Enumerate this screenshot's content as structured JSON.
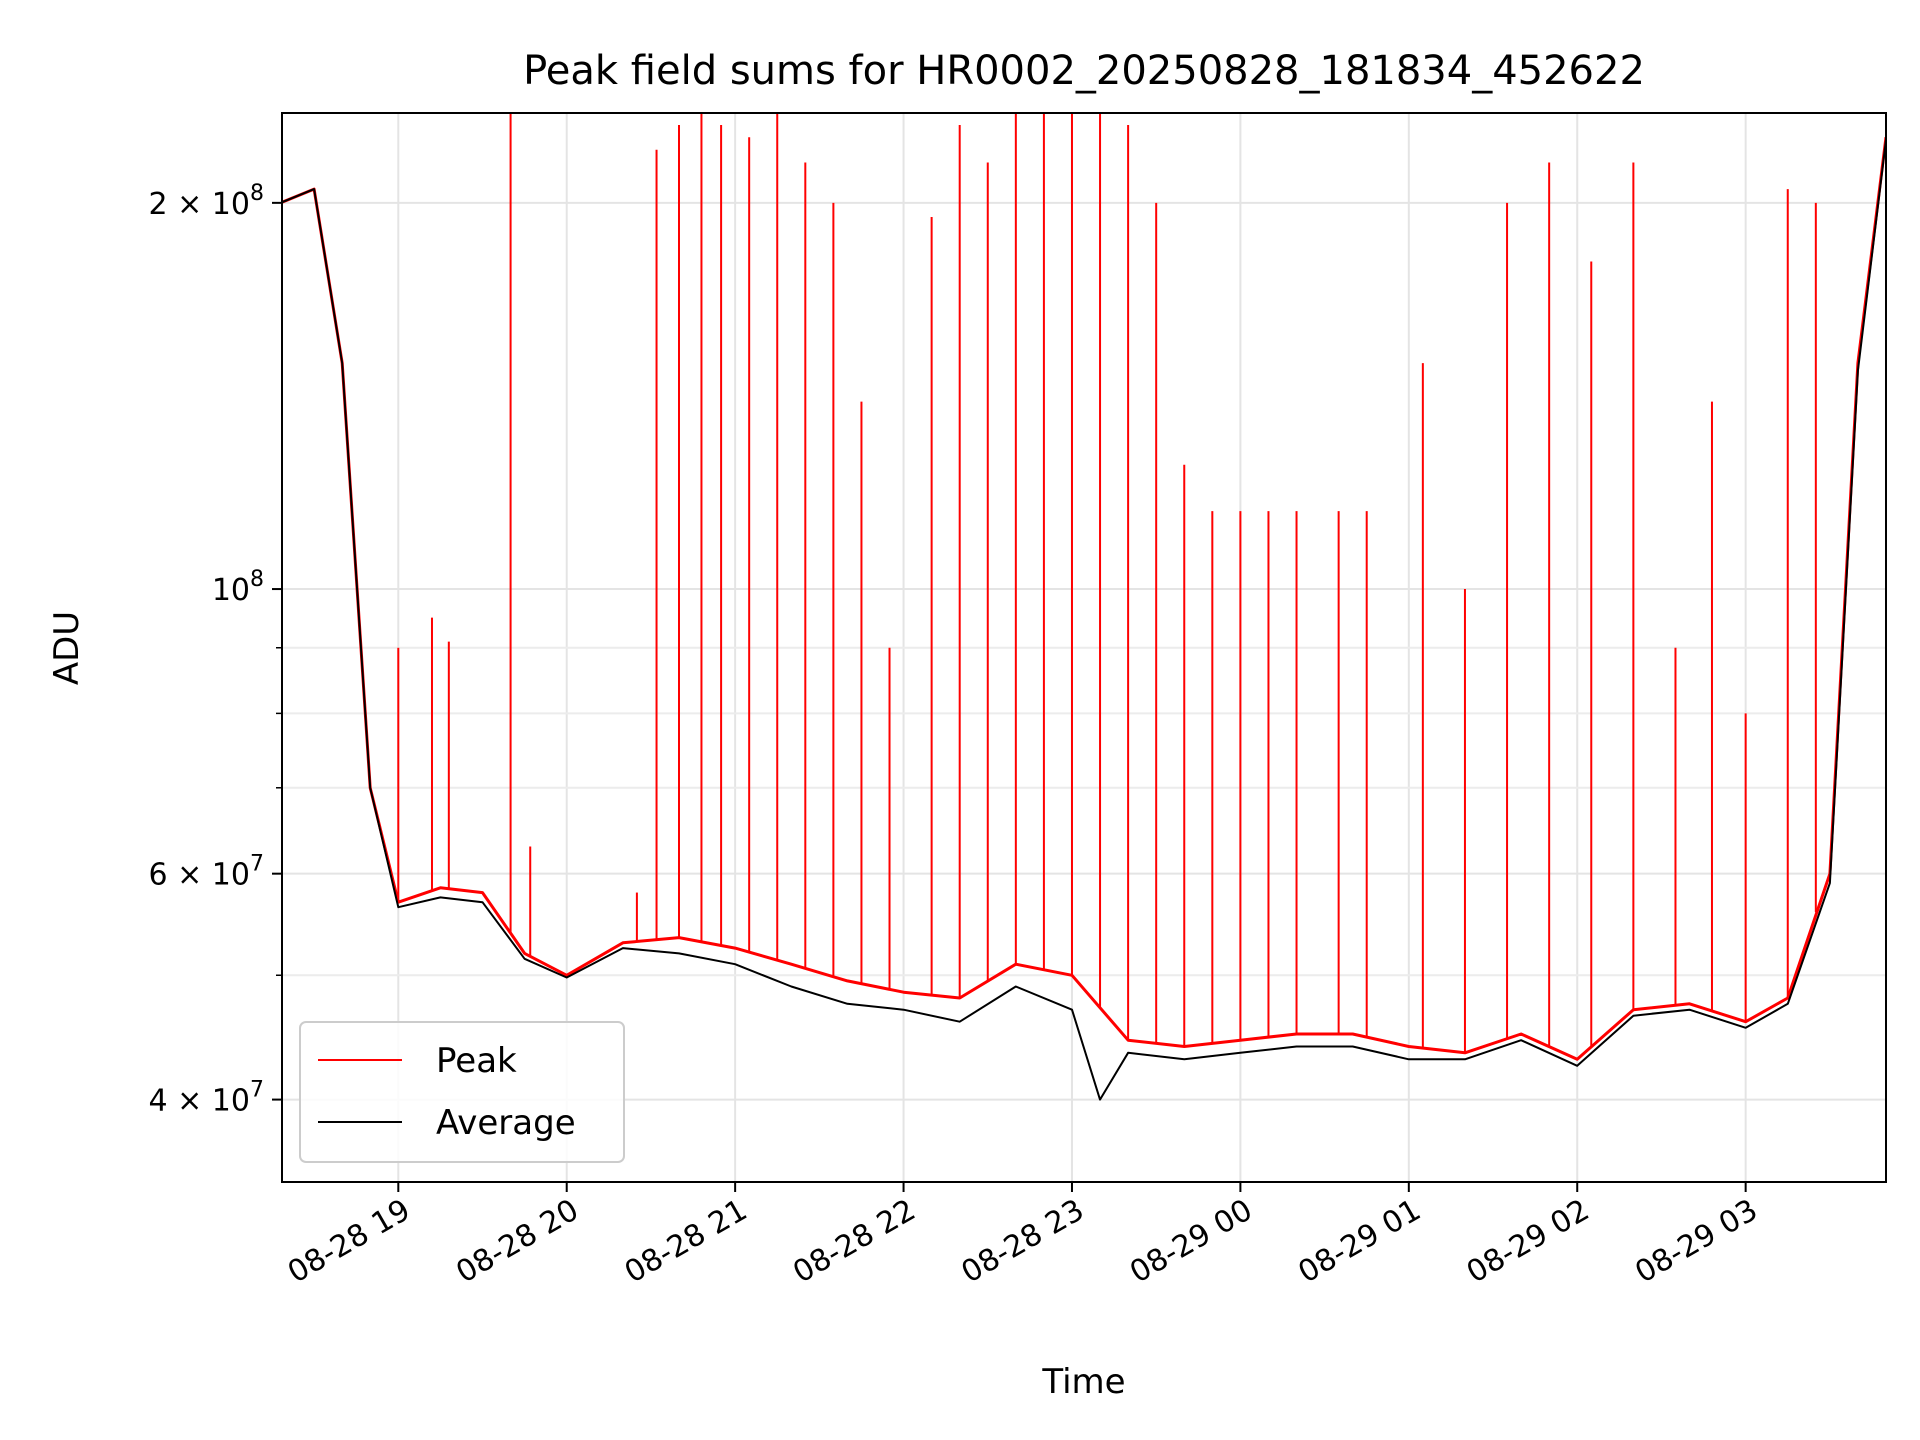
{
  "chart_data": {
    "type": "line",
    "title": "Peak field sums for HR0002_20250828_181834_452622",
    "xlabel": "Time",
    "ylabel": "ADU",
    "yscale": "log",
    "x_range": [
      "2025-08-28 18:18:34",
      "2025-08-29 03:50:00"
    ],
    "ylim": [
      34500000,
      235000000
    ],
    "grid": true,
    "legend_position": "lower-left",
    "x_ticks": [
      {
        "t": "2025-08-28 19:00",
        "label": "08-28 19"
      },
      {
        "t": "2025-08-28 20:00",
        "label": "08-28 20"
      },
      {
        "t": "2025-08-28 21:00",
        "label": "08-28 21"
      },
      {
        "t": "2025-08-28 22:00",
        "label": "08-28 22"
      },
      {
        "t": "2025-08-28 23:00",
        "label": "08-28 23"
      },
      {
        "t": "2025-08-29 00:00",
        "label": "08-29 00"
      },
      {
        "t": "2025-08-29 01:00",
        "label": "08-29 01"
      },
      {
        "t": "2025-08-29 02:00",
        "label": "08-29 02"
      },
      {
        "t": "2025-08-29 03:00",
        "label": "08-29 03"
      }
    ],
    "y_ticks": [
      {
        "value": 40000000,
        "mant": "4",
        "exp": "7"
      },
      {
        "value": 60000000,
        "mant": "6",
        "exp": "7"
      },
      {
        "value": 100000000,
        "mant": "",
        "exp": "8"
      },
      {
        "value": 200000000,
        "mant": "2",
        "exp": "8"
      }
    ],
    "y_minor_ticks": [
      50000000,
      70000000,
      80000000,
      90000000
    ],
    "series": [
      {
        "name": "Peak",
        "color": "#ff0000",
        "x": [
          "2025-08-28 18:18",
          "2025-08-28 18:30",
          "2025-08-28 18:40",
          "2025-08-28 18:50",
          "2025-08-28 19:00",
          "2025-08-28 19:15",
          "2025-08-28 19:30",
          "2025-08-28 19:45",
          "2025-08-28 20:00",
          "2025-08-28 20:20",
          "2025-08-28 20:40",
          "2025-08-28 21:00",
          "2025-08-28 21:20",
          "2025-08-28 21:40",
          "2025-08-28 22:00",
          "2025-08-28 22:20",
          "2025-08-28 22:40",
          "2025-08-28 23:00",
          "2025-08-28 23:20",
          "2025-08-28 23:40",
          "2025-08-29 00:00",
          "2025-08-29 00:20",
          "2025-08-29 00:40",
          "2025-08-29 01:00",
          "2025-08-29 01:20",
          "2025-08-29 01:40",
          "2025-08-29 02:00",
          "2025-08-29 02:20",
          "2025-08-29 02:40",
          "2025-08-29 03:00",
          "2025-08-29 03:15",
          "2025-08-29 03:30",
          "2025-08-29 03:40",
          "2025-08-29 03:50"
        ],
        "y": [
          200000000,
          205000000,
          150000000,
          70000000,
          57000000,
          58500000,
          58000000,
          52000000,
          50000000,
          53000000,
          53500000,
          52500000,
          51000000,
          49500000,
          48500000,
          48000000,
          51000000,
          50000000,
          44500000,
          44000000,
          44500000,
          45000000,
          45000000,
          44000000,
          43500000,
          45000000,
          43000000,
          47000000,
          47500000,
          46000000,
          48000000,
          60000000,
          150000000,
          225000000
        ],
        "spikes": [
          {
            "t": "2025-08-28 19:00",
            "y": 90000000
          },
          {
            "t": "2025-08-28 19:12",
            "y": 95000000
          },
          {
            "t": "2025-08-28 19:18",
            "y": 91000000
          },
          {
            "t": "2025-08-28 19:40",
            "y": 235000000
          },
          {
            "t": "2025-08-28 19:47",
            "y": 63000000
          },
          {
            "t": "2025-08-28 20:25",
            "y": 58000000
          },
          {
            "t": "2025-08-28 20:32",
            "y": 220000000
          },
          {
            "t": "2025-08-28 20:40",
            "y": 230000000
          },
          {
            "t": "2025-08-28 20:48",
            "y": 235000000
          },
          {
            "t": "2025-08-28 20:55",
            "y": 230000000
          },
          {
            "t": "2025-08-28 21:05",
            "y": 225000000
          },
          {
            "t": "2025-08-28 21:15",
            "y": 235000000
          },
          {
            "t": "2025-08-28 21:25",
            "y": 215000000
          },
          {
            "t": "2025-08-28 21:35",
            "y": 200000000
          },
          {
            "t": "2025-08-28 21:45",
            "y": 140000000
          },
          {
            "t": "2025-08-28 21:55",
            "y": 90000000
          },
          {
            "t": "2025-08-28 22:10",
            "y": 195000000
          },
          {
            "t": "2025-08-28 22:20",
            "y": 230000000
          },
          {
            "t": "2025-08-28 22:30",
            "y": 215000000
          },
          {
            "t": "2025-08-28 22:40",
            "y": 235000000
          },
          {
            "t": "2025-08-28 22:50",
            "y": 235000000
          },
          {
            "t": "2025-08-28 23:00",
            "y": 235000000
          },
          {
            "t": "2025-08-28 23:10",
            "y": 235000000
          },
          {
            "t": "2025-08-28 23:20",
            "y": 230000000
          },
          {
            "t": "2025-08-28 23:30",
            "y": 200000000
          },
          {
            "t": "2025-08-28 23:40",
            "y": 125000000
          },
          {
            "t": "2025-08-28 23:50",
            "y": 115000000
          },
          {
            "t": "2025-08-29 00:00",
            "y": 115000000
          },
          {
            "t": "2025-08-29 00:10",
            "y": 115000000
          },
          {
            "t": "2025-08-29 00:20",
            "y": 115000000
          },
          {
            "t": "2025-08-29 00:35",
            "y": 115000000
          },
          {
            "t": "2025-08-29 00:45",
            "y": 115000000
          },
          {
            "t": "2025-08-29 01:05",
            "y": 150000000
          },
          {
            "t": "2025-08-29 01:20",
            "y": 100000000
          },
          {
            "t": "2025-08-29 01:35",
            "y": 200000000
          },
          {
            "t": "2025-08-29 01:50",
            "y": 215000000
          },
          {
            "t": "2025-08-29 02:05",
            "y": 180000000
          },
          {
            "t": "2025-08-29 02:20",
            "y": 215000000
          },
          {
            "t": "2025-08-29 02:35",
            "y": 90000000
          },
          {
            "t": "2025-08-29 02:48",
            "y": 140000000
          },
          {
            "t": "2025-08-29 03:00",
            "y": 80000000
          },
          {
            "t": "2025-08-29 03:15",
            "y": 205000000
          },
          {
            "t": "2025-08-29 03:25",
            "y": 200000000
          }
        ]
      },
      {
        "name": "Average",
        "color": "#000000",
        "x": [
          "2025-08-28 18:18",
          "2025-08-28 18:30",
          "2025-08-28 18:40",
          "2025-08-28 18:50",
          "2025-08-28 19:00",
          "2025-08-28 19:15",
          "2025-08-28 19:30",
          "2025-08-28 19:45",
          "2025-08-28 20:00",
          "2025-08-28 20:20",
          "2025-08-28 20:40",
          "2025-08-28 21:00",
          "2025-08-28 21:20",
          "2025-08-28 21:40",
          "2025-08-28 22:00",
          "2025-08-28 22:20",
          "2025-08-28 22:40",
          "2025-08-28 23:00",
          "2025-08-28 23:10",
          "2025-08-28 23:20",
          "2025-08-28 23:40",
          "2025-08-29 00:00",
          "2025-08-29 00:20",
          "2025-08-29 00:40",
          "2025-08-29 01:00",
          "2025-08-29 01:20",
          "2025-08-29 01:40",
          "2025-08-29 02:00",
          "2025-08-29 02:20",
          "2025-08-29 02:40",
          "2025-08-29 03:00",
          "2025-08-29 03:15",
          "2025-08-29 03:30",
          "2025-08-29 03:40",
          "2025-08-29 03:50"
        ],
        "y": [
          200000000,
          205000000,
          150000000,
          70000000,
          56500000,
          57500000,
          57000000,
          51500000,
          49800000,
          52500000,
          52000000,
          51000000,
          49000000,
          47500000,
          47000000,
          46000000,
          49000000,
          47000000,
          40000000,
          43500000,
          43000000,
          43500000,
          44000000,
          44000000,
          43000000,
          43000000,
          44500000,
          42500000,
          46500000,
          47000000,
          45500000,
          47500000,
          59000000,
          148000000,
          224000000
        ]
      }
    ]
  }
}
